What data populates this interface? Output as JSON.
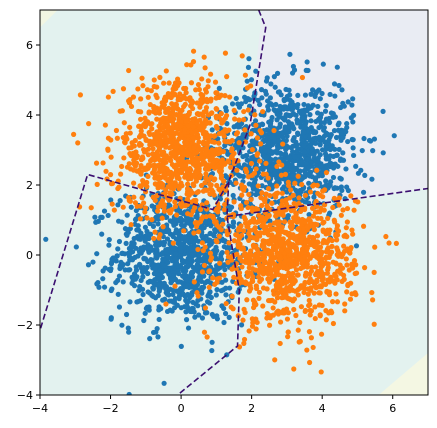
{
  "chart_data": {
    "type": "scatter",
    "title": "",
    "xlabel": "",
    "ylabel": "",
    "xlim": [
      -4,
      7
    ],
    "ylim": [
      -4,
      7
    ],
    "xticks": [
      -4,
      -2,
      0,
      2,
      4,
      6
    ],
    "yticks": [
      -4,
      -2,
      0,
      2,
      4,
      6
    ],
    "xtick_labels": [
      "−4",
      "−2",
      "0",
      "2",
      "4",
      "6"
    ],
    "ytick_labels": [
      "−4",
      "−2",
      "0",
      "2",
      "4",
      "6"
    ],
    "grid": false,
    "legend": "none",
    "series": [
      {
        "color": "#1f77b4",
        "clusters": [
          {
            "center": [
              0,
              0
            ],
            "std": 0.95,
            "count": 1000
          },
          {
            "center": [
              3,
              3
            ],
            "std": 0.95,
            "count": 1000
          }
        ]
      },
      {
        "color": "#ff7f0e",
        "clusters": [
          {
            "center": [
              0,
              3
            ],
            "std": 0.95,
            "count": 1000
          },
          {
            "center": [
              3,
              0
            ],
            "std": 0.95,
            "count": 1000
          }
        ]
      }
    ],
    "decision_boundary": {
      "style": "dashed",
      "color": "#3b0f70",
      "paths": [
        [
          [
            2.2,
            7.0
          ],
          [
            2.4,
            6.5
          ],
          [
            1.95,
            3.7
          ],
          [
            1.35,
            2.1
          ],
          [
            0.9,
            1.3
          ],
          [
            -2.65,
            2.3
          ],
          [
            -4.0,
            -2.15
          ]
        ],
        [
          [
            1.35,
            2.1
          ],
          [
            1.3,
            1.1
          ],
          [
            1.65,
            -1.0
          ],
          [
            1.6,
            -2.6
          ],
          [
            -0.1,
            -4.0
          ]
        ],
        [
          [
            1.3,
            1.1
          ],
          [
            7.0,
            1.9
          ]
        ]
      ]
    },
    "background_regions": [
      {
        "color": "#e3f2ef",
        "polygon": [
          [
            -4,
            -4
          ],
          [
            7,
            -4
          ],
          [
            7,
            7
          ],
          [
            -4,
            7
          ]
        ]
      },
      {
        "color": "#e9ecf3",
        "polygon": [
          [
            2.3,
            7
          ],
          [
            7,
            7
          ],
          [
            7,
            1.9
          ],
          [
            1.35,
            1.1
          ],
          [
            1.95,
            3.7
          ]
        ]
      },
      {
        "color": "#f2f6e2",
        "polygon": [
          [
            -4,
            6.5
          ],
          [
            -3.5,
            7
          ],
          [
            -4,
            7
          ]
        ]
      },
      {
        "color": "#f4f7e3",
        "polygon": [
          [
            5.6,
            -4
          ],
          [
            7,
            -4
          ],
          [
            7,
            -2.8
          ]
        ]
      }
    ]
  }
}
